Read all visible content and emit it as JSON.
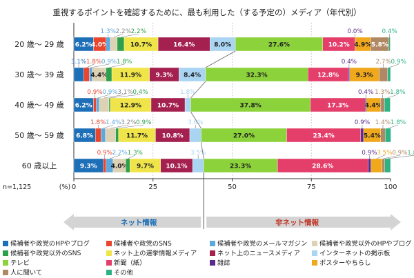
{
  "chart_data": {
    "type": "bar",
    "stacked": true,
    "orientation": "horizontal",
    "title": "重視するポイントを確認するために、最も利用した（する予定の）メディア（年代別）",
    "categories": [
      "20 歳〜 29 歳",
      "30 歳〜 39 歳",
      "40 歳〜 49 歳",
      "50 歳〜 59 歳",
      "60 歳以上"
    ],
    "x_axis": {
      "unit_label": "(%)",
      "ticks": [
        "0",
        "25",
        "50",
        "75",
        "100"
      ],
      "range": [
        0,
        100
      ]
    },
    "sample_note": "n=1,125",
    "series": [
      {
        "name": "候補者や政党のHPやブログ",
        "color": "#1d6fb8",
        "group": "net",
        "values": [
          6.2,
          3.1,
          6.2,
          6.8,
          9.3
        ]
      },
      {
        "name": "候補者や政党のSNS",
        "color": "#e8462f",
        "group": "net",
        "values": [
          4.0,
          1.8,
          0.9,
          1.8,
          0.9
        ]
      },
      {
        "name": "候補者や政党のメールマガジン",
        "color": "#5da8dd",
        "group": "net",
        "values": [
          1.3,
          0.9,
          0.9,
          1.4,
          2.2
        ]
      },
      {
        "name": "候補者や政党以外のHPやブログ",
        "color": "#ddd2b4",
        "group": "net",
        "values": [
          2.2,
          4.4,
          3.1,
          3.2,
          4.0
        ]
      },
      {
        "name": "候補者や政党以外のSNS",
        "color": "#2ea04a",
        "group": "net",
        "values": [
          2.2,
          1.8,
          0.4,
          0.9,
          1.3
        ]
      },
      {
        "name": "ネット上の選挙情報メディア",
        "color": "#efe54a",
        "group": "net",
        "values": [
          10.7,
          11.9,
          12.9,
          11.7,
          9.7
        ]
      },
      {
        "name": "ネット上のニュースメディア",
        "color": "#a3204f",
        "group": "net",
        "values": [
          16.4,
          9.3,
          10.7,
          10.8,
          10.1
        ]
      },
      {
        "name": "インターネットの掲示板",
        "color": "#a9d4f2",
        "group": "net",
        "values": [
          8.0,
          8.4,
          1.8,
          3.6,
          3.5
        ]
      },
      {
        "name": "テレビ",
        "color": "#8cd23a",
        "group": "non-net",
        "values": [
          27.6,
          32.3,
          37.8,
          27.0,
          23.3
        ]
      },
      {
        "name": "新聞（紙）",
        "color": "#e43e6b",
        "group": "non-net",
        "values": [
          10.2,
          12.8,
          17.3,
          23.4,
          28.6
        ]
      },
      {
        "name": "雑誌",
        "color": "#5a2a8c",
        "group": "non-net",
        "values": [
          0.0,
          0.4,
          0.4,
          0.9,
          0.9
        ]
      },
      {
        "name": "ポスターやちらし",
        "color": "#f0a81c",
        "group": "non-net",
        "values": [
          4.9,
          9.3,
          4.4,
          5.4,
          3.5
        ]
      },
      {
        "name": "人に聞いて",
        "color": "#b08863",
        "group": "non-net",
        "values": [
          5.8,
          2.7,
          1.3,
          1.4,
          0.9
        ]
      },
      {
        "name": "その他",
        "color": "#2db383",
        "group": "non-net",
        "values": [
          0.4,
          0.9,
          1.8,
          1.8,
          1.8
        ]
      }
    ],
    "annotations": {
      "net_label": "ネット情報",
      "non_net_label": "非ネット情報"
    }
  }
}
